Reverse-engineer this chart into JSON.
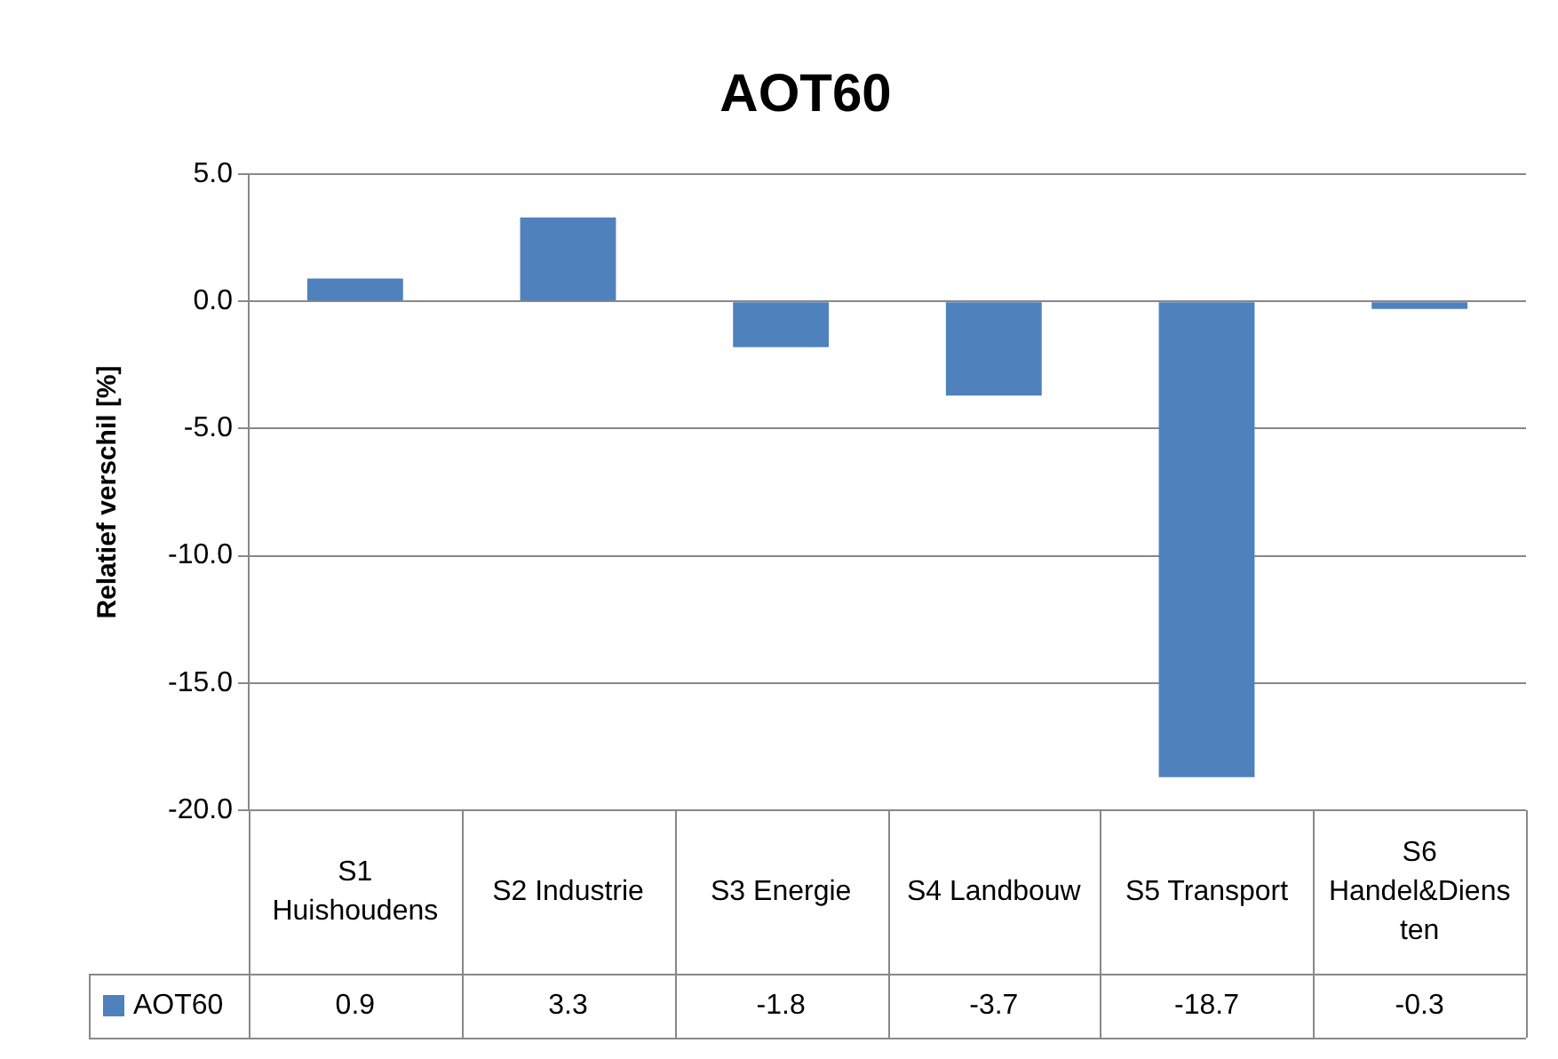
{
  "chart_data": {
    "type": "bar",
    "title": "AOT60",
    "ylabel": "Relatief verschil [%]",
    "categories": [
      "S1 Huishoudens",
      "S2 Industrie",
      "S3 Energie",
      "S4 Landbouw",
      "S5 Transport",
      "S6 Handel&Diensten"
    ],
    "series": [
      {
        "name": "AOT60",
        "color": "#4f81bd",
        "values": [
          0.9,
          3.3,
          -1.8,
          -3.7,
          -18.7,
          -0.3
        ]
      }
    ],
    "ylim": [
      -20,
      5
    ],
    "yticks": [
      {
        "value": 5,
        "label": "5.0"
      },
      {
        "value": 0,
        "label": "0.0"
      },
      {
        "value": -5,
        "label": "-5.0"
      },
      {
        "value": -10,
        "label": "-10.0"
      },
      {
        "value": -15,
        "label": "-15.0"
      },
      {
        "value": -20,
        "label": "-20.0"
      }
    ],
    "grid": "y",
    "legend": "bottom",
    "data_labels": true
  }
}
